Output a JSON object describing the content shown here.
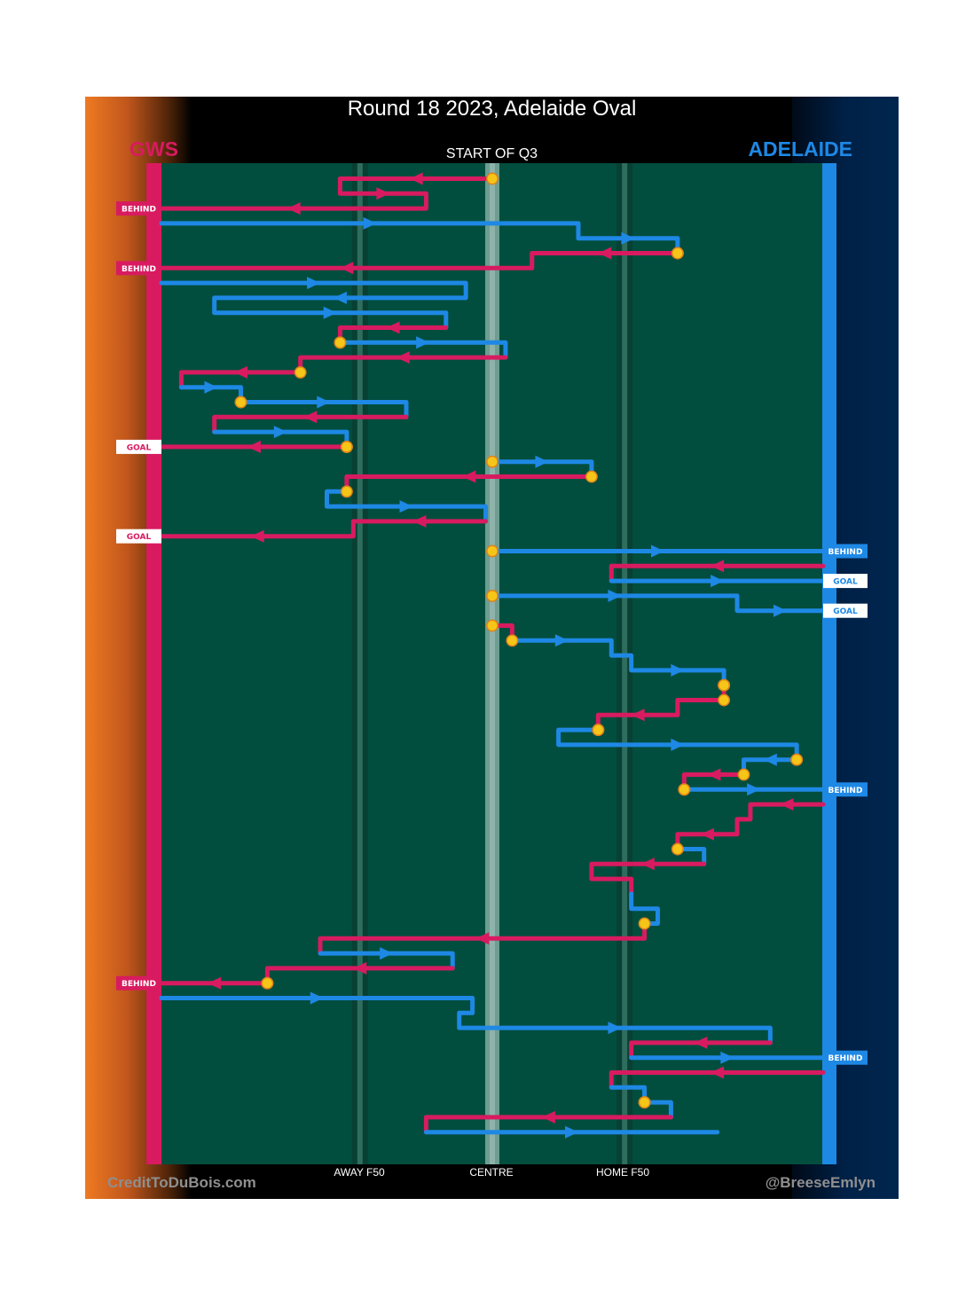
{
  "title": "Round 18 2023, Adelaide Oval",
  "period": "START OF Q3",
  "teams": {
    "away": {
      "name": "GWS",
      "color": "#d81b60"
    },
    "home": {
      "name": "ADELAIDE",
      "color": "#1e88e5"
    }
  },
  "axis_labels": {
    "away_f50": "AWAY F50",
    "centre": "CENTRE",
    "home_f50": "HOME F50"
  },
  "credits": {
    "left": "CreditToDuBois.com",
    "right": "@BreeseEmlyn"
  },
  "colors": {
    "field": "#024e3e",
    "stoppage": "#f5c518",
    "away": "#d81b60",
    "home": "#1e88e5"
  },
  "chart_data": {
    "type": "line",
    "description_axis": "x = field position (0 = GWS goal line, 100 = Adelaide goal line)",
    "x_range": [
      0,
      100
    ],
    "markers": {
      "away_f50": 30,
      "centre": 50,
      "home_f50": 70
    },
    "chains": [
      {
        "team": "away",
        "points": [
          [
            50,
            0
          ],
          [
            27,
            0
          ],
          [
            27,
            1
          ],
          [
            40,
            1
          ],
          [
            40,
            2
          ],
          [
            0,
            2
          ]
        ],
        "stoppage_start": true,
        "outcome": "BEHIND"
      },
      {
        "team": "home",
        "points": [
          [
            0,
            3
          ],
          [
            63,
            3
          ],
          [
            63,
            4
          ],
          [
            78,
            4
          ],
          [
            78,
            5
          ]
        ],
        "stoppage_end": true
      },
      {
        "team": "away",
        "points": [
          [
            78,
            5
          ],
          [
            56,
            5
          ],
          [
            56,
            6
          ],
          [
            0,
            6
          ]
        ],
        "stoppage_start": true,
        "outcome": "BEHIND"
      },
      {
        "team": "home",
        "points": [
          [
            0,
            7
          ],
          [
            46,
            7
          ],
          [
            46,
            8
          ],
          [
            8,
            8
          ],
          [
            8,
            9
          ],
          [
            43,
            9
          ],
          [
            43,
            10
          ]
        ]
      },
      {
        "team": "away",
        "points": [
          [
            43,
            10
          ],
          [
            27,
            10
          ],
          [
            27,
            11
          ]
        ],
        "stoppage_end": true
      },
      {
        "team": "home",
        "points": [
          [
            27,
            11
          ],
          [
            52,
            11
          ],
          [
            52,
            12
          ]
        ],
        "stoppage_start": true
      },
      {
        "team": "away",
        "points": [
          [
            52,
            12
          ],
          [
            21,
            12
          ],
          [
            21,
            13
          ]
        ],
        "stoppage_end": true
      },
      {
        "team": "away",
        "points": [
          [
            21,
            13
          ],
          [
            3,
            13
          ],
          [
            3,
            14
          ]
        ]
      },
      {
        "team": "home",
        "points": [
          [
            3,
            14
          ],
          [
            12,
            14
          ],
          [
            12,
            15
          ]
        ],
        "stoppage_end": true
      },
      {
        "team": "home",
        "points": [
          [
            12,
            15
          ],
          [
            37,
            15
          ],
          [
            37,
            16
          ]
        ],
        "stoppage_start": true
      },
      {
        "team": "away",
        "points": [
          [
            37,
            16
          ],
          [
            8,
            16
          ],
          [
            8,
            17
          ]
        ]
      },
      {
        "team": "home",
        "points": [
          [
            8,
            17
          ],
          [
            28,
            17
          ],
          [
            28,
            18
          ]
        ],
        "stoppage_end": true
      },
      {
        "team": "away",
        "points": [
          [
            28,
            18
          ],
          [
            0,
            18
          ]
        ],
        "stoppage_start": true,
        "outcome": "GOAL"
      },
      {
        "team": "home",
        "points": [
          [
            50,
            19
          ],
          [
            65,
            19
          ],
          [
            65,
            20
          ]
        ],
        "stoppage_start": true,
        "stoppage_end": true
      },
      {
        "team": "away",
        "points": [
          [
            65,
            20
          ],
          [
            28,
            20
          ],
          [
            28,
            21
          ]
        ],
        "stoppage_end": true
      },
      {
        "team": "home",
        "points": [
          [
            28,
            21
          ],
          [
            25,
            21
          ],
          [
            25,
            22
          ],
          [
            49,
            22
          ],
          [
            49,
            23
          ]
        ]
      },
      {
        "team": "away",
        "points": [
          [
            49,
            23
          ],
          [
            29,
            23
          ],
          [
            29,
            24
          ],
          [
            0,
            24
          ]
        ],
        "outcome": "GOAL"
      },
      {
        "team": "home",
        "points": [
          [
            50,
            25
          ],
          [
            100,
            25
          ]
        ],
        "stoppage_start": true,
        "outcome": "BEHIND"
      },
      {
        "team": "away",
        "points": [
          [
            100,
            26
          ],
          [
            68,
            26
          ],
          [
            68,
            27
          ]
        ]
      },
      {
        "team": "home",
        "points": [
          [
            68,
            27
          ],
          [
            100,
            27
          ]
        ],
        "outcome": "GOAL"
      },
      {
        "team": "home",
        "points": [
          [
            50,
            28
          ],
          [
            87,
            28
          ],
          [
            87,
            29
          ],
          [
            100,
            29
          ]
        ],
        "stoppage_start": true,
        "outcome": "GOAL"
      },
      {
        "team": "away",
        "points": [
          [
            50,
            30
          ],
          [
            53,
            30
          ],
          [
            53,
            31
          ]
        ],
        "stoppage_start": true,
        "stoppage_end": true
      },
      {
        "team": "home",
        "points": [
          [
            53,
            31
          ],
          [
            68,
            31
          ],
          [
            68,
            32
          ],
          [
            71,
            32
          ],
          [
            71,
            33
          ],
          [
            85,
            33
          ],
          [
            85,
            34
          ]
        ],
        "stoppage_end": true
      },
      {
        "team": "away",
        "points": [
          [
            85,
            34
          ],
          [
            85,
            35
          ]
        ],
        "stoppage_start": true
      },
      {
        "team": "away",
        "points": [
          [
            85,
            35
          ],
          [
            78,
            35
          ],
          [
            78,
            36
          ],
          [
            66,
            36
          ],
          [
            66,
            37
          ]
        ],
        "stoppage_start": true,
        "stoppage_end": true
      },
      {
        "team": "home",
        "points": [
          [
            66,
            37
          ],
          [
            60,
            37
          ],
          [
            60,
            38
          ],
          [
            96,
            38
          ],
          [
            96,
            39
          ]
        ],
        "stoppage_start": true,
        "stoppage_end": true
      },
      {
        "team": "home",
        "points": [
          [
            96,
            39
          ],
          [
            88,
            39
          ],
          [
            88,
            40
          ]
        ],
        "stoppage_start": true,
        "stoppage_end": true
      },
      {
        "team": "away",
        "points": [
          [
            88,
            40
          ],
          [
            79,
            40
          ],
          [
            79,
            41
          ]
        ],
        "stoppage_end": true
      },
      {
        "team": "home",
        "points": [
          [
            79,
            41
          ],
          [
            100,
            41
          ]
        ],
        "stoppage_start": true,
        "outcome": "BEHIND"
      },
      {
        "team": "away",
        "points": [
          [
            100,
            42
          ],
          [
            89,
            42
          ],
          [
            89,
            43
          ],
          [
            87,
            43
          ],
          [
            87,
            44
          ],
          [
            78,
            44
          ],
          [
            78,
            45
          ]
        ],
        "stoppage_end": true
      },
      {
        "team": "home",
        "points": [
          [
            78,
            45
          ],
          [
            82,
            45
          ],
          [
            82,
            46
          ]
        ],
        "stoppage_start": true
      },
      {
        "team": "away",
        "points": [
          [
            82,
            46
          ],
          [
            65,
            46
          ],
          [
            65,
            47
          ],
          [
            71,
            47
          ],
          [
            71,
            48
          ]
        ]
      },
      {
        "team": "home",
        "points": [
          [
            71,
            48
          ],
          [
            71,
            49
          ],
          [
            75,
            49
          ],
          [
            75,
            50
          ],
          [
            73,
            50
          ]
        ]
      },
      {
        "team": "away",
        "points": [
          [
            73,
            50
          ],
          [
            73,
            51
          ],
          [
            24,
            51
          ],
          [
            24,
            52
          ]
        ],
        "stoppage_start": true
      },
      {
        "team": "home",
        "points": [
          [
            24,
            52
          ],
          [
            44,
            52
          ],
          [
            44,
            53
          ]
        ]
      },
      {
        "team": "away",
        "points": [
          [
            44,
            53
          ],
          [
            16,
            53
          ],
          [
            16,
            54
          ]
        ],
        "stoppage_end": true
      },
      {
        "team": "away",
        "points": [
          [
            16,
            54
          ],
          [
            0,
            54
          ]
        ],
        "stoppage_start": true,
        "outcome": "BEHIND"
      },
      {
        "team": "home",
        "points": [
          [
            0,
            55
          ],
          [
            47,
            55
          ],
          [
            47,
            56
          ],
          [
            45,
            56
          ],
          [
            45,
            57
          ],
          [
            92,
            57
          ],
          [
            92,
            58
          ]
        ]
      },
      {
        "team": "away",
        "points": [
          [
            92,
            58
          ],
          [
            71,
            58
          ],
          [
            71,
            59
          ]
        ]
      },
      {
        "team": "home",
        "points": [
          [
            71,
            59
          ],
          [
            100,
            59
          ]
        ],
        "outcome": "BEHIND"
      },
      {
        "team": "away",
        "points": [
          [
            100,
            60
          ],
          [
            68,
            60
          ],
          [
            68,
            61
          ]
        ]
      },
      {
        "team": "home",
        "points": [
          [
            68,
            61
          ],
          [
            73,
            61
          ],
          [
            73,
            62
          ]
        ],
        "stoppage_end": true
      },
      {
        "team": "home",
        "points": [
          [
            73,
            62
          ],
          [
            77,
            62
          ],
          [
            77,
            63
          ]
        ],
        "stoppage_start": true
      },
      {
        "team": "away",
        "points": [
          [
            77,
            63
          ],
          [
            40,
            63
          ],
          [
            40,
            64
          ]
        ]
      },
      {
        "team": "home",
        "points": [
          [
            40,
            64
          ],
          [
            84,
            64
          ]
        ]
      }
    ]
  }
}
